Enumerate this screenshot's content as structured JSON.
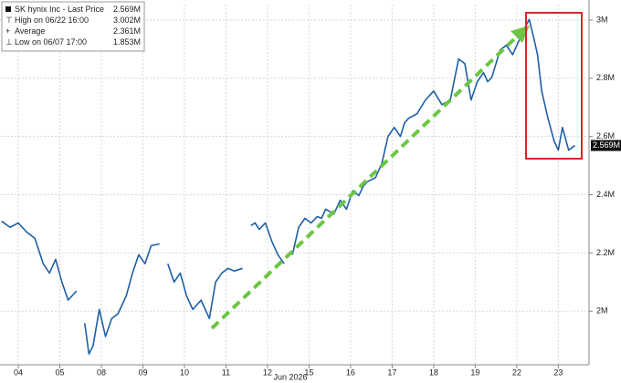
{
  "chart_data": {
    "type": "line",
    "x_title": "Jun 2026",
    "xlim": [
      -0.44,
      13.74
    ],
    "xticks": [
      {
        "value": 0,
        "label": "04"
      },
      {
        "value": 1,
        "label": "05"
      },
      {
        "value": 2,
        "label": "08"
      },
      {
        "value": 3,
        "label": "09"
      },
      {
        "value": 4,
        "label": "10"
      },
      {
        "value": 5,
        "label": "11"
      },
      {
        "value": 6,
        "label": "12"
      },
      {
        "value": 7,
        "label": "15"
      },
      {
        "value": 8,
        "label": "16"
      },
      {
        "value": 9,
        "label": "17"
      },
      {
        "value": 10,
        "label": "18"
      },
      {
        "value": 11,
        "label": "19"
      },
      {
        "value": 12,
        "label": "22"
      },
      {
        "value": 13,
        "label": "23"
      }
    ],
    "ylim": [
      1816000,
      3053000
    ],
    "yticks": [
      {
        "value": 2000000,
        "label": "2M"
      },
      {
        "value": 2200000,
        "label": "2.2M"
      },
      {
        "value": 2400000,
        "label": "2.4M"
      },
      {
        "value": 2600000,
        "label": "2.6M"
      },
      {
        "value": 2800000,
        "label": "2.8M"
      },
      {
        "value": 3000000,
        "label": "3M"
      }
    ],
    "grid": true,
    "x": [
      -0.4,
      -0.2,
      0,
      0.2,
      0.4,
      0.6,
      0.75,
      0.9,
      1.05,
      1.2,
      1.4,
      1.5,
      1.6,
      1.7,
      1.8,
      1.95,
      2.1,
      2.25,
      2.4,
      2.6,
      2.75,
      2.9,
      3.05,
      3.2,
      3.4,
      3.5,
      3.6,
      3.75,
      3.9,
      4.05,
      4.2,
      4.4,
      4.6,
      4.75,
      4.9,
      5.05,
      5.2,
      5.4,
      5.5,
      5.6,
      5.7,
      5.8,
      5.95,
      6.1,
      6.25,
      6.4,
      6.5,
      6.6,
      6.75,
      6.9,
      7.05,
      7.2,
      7.3,
      7.4,
      7.6,
      7.75,
      7.9,
      8.05,
      8.2,
      8.3,
      8.4,
      8.6,
      8.75,
      8.9,
      9.05,
      9.2,
      9.3,
      9.4,
      9.6,
      9.8,
      10.0,
      10.2,
      10.4,
      10.6,
      10.75,
      10.9,
      11.05,
      11.2,
      11.3,
      11.4,
      11.6,
      11.75,
      11.9,
      12.05,
      12.2,
      12.3,
      12.4,
      12.5,
      12.6,
      12.75,
      12.9,
      13.0,
      13.1,
      13.25,
      13.4
    ],
    "series": [
      {
        "name": "SK hynix Inc - Last Price",
        "color": "#1f5fa8",
        "last_label": "2.569M",
        "values": [
          2309000,
          2288000,
          2303000,
          2272000,
          2250000,
          2163000,
          2131000,
          2178000,
          2100000,
          2038000,
          2069000,
          null,
          1959000,
          1853000,
          1881000,
          2006000,
          1913000,
          1975000,
          1991000,
          2053000,
          2131000,
          2194000,
          2163000,
          2225000,
          2231000,
          null,
          2163000,
          2100000,
          2131000,
          2053000,
          2006000,
          2038000,
          1975000,
          2100000,
          2131000,
          2147000,
          2138000,
          2147000,
          null,
          2294000,
          2303000,
          2281000,
          2303000,
          2241000,
          2194000,
          2163000,
          null,
          2194000,
          2288000,
          2319000,
          2303000,
          2325000,
          2319000,
          2350000,
          2334000,
          2381000,
          2350000,
          2413000,
          2397000,
          2428000,
          2444000,
          2459000,
          2506000,
          2600000,
          2631000,
          2600000,
          2647000,
          2663000,
          2678000,
          2725000,
          2756000,
          2709000,
          2725000,
          2866000,
          2850000,
          2725000,
          2788000,
          2819000,
          2788000,
          2803000,
          2897000,
          2913000,
          2881000,
          2928000,
          2975000,
          3002000,
          2944000,
          2881000,
          2756000,
          2663000,
          2584000,
          2553000,
          2631000,
          2553000,
          2569000
        ]
      }
    ],
    "stats": [
      {
        "name": "High on 06/22 16:00",
        "label": "3.002M"
      },
      {
        "name": "Average",
        "label": "2.361M"
      },
      {
        "name": "Low on 06/07 17:00",
        "label": "1.853M"
      }
    ]
  }
}
